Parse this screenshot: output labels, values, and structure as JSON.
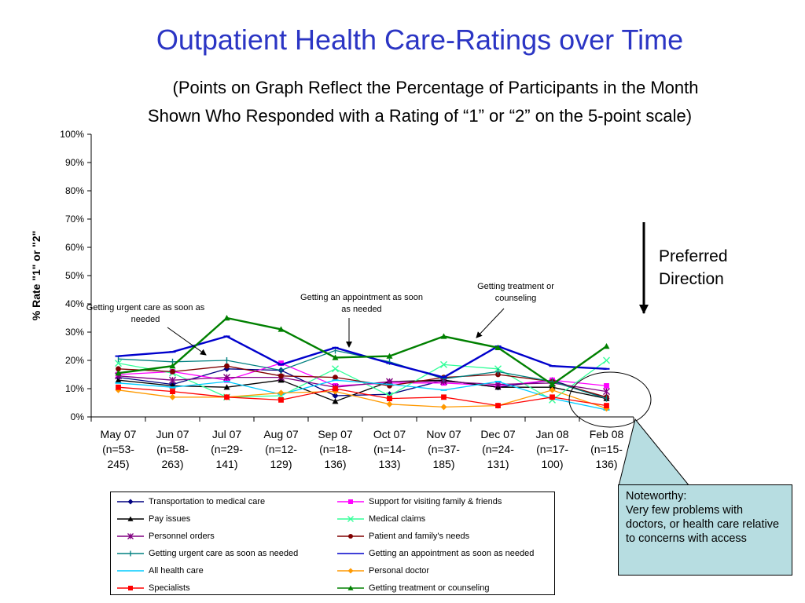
{
  "title": "Outpatient Health Care-Ratings over Time",
  "subtitle": {
    "line1": "(Points on Graph Reflect the Percentage of Participants in the Month",
    "line2": "Shown Who Responded with a Rating of “1” or “2” on the 5-point scale)"
  },
  "annotations": {
    "urgent": "Getting urgent care as soon as needed",
    "appointment": "Getting an appointment as soon as needed",
    "treatment": "Getting treatment or counseling",
    "preferred_line1": "Preferred",
    "preferred_line2": "Direction",
    "noteworthy_title": "Noteworthy:",
    "noteworthy_body": "Very few problems with doctors, or health care relative to concerns with access"
  },
  "chart_data": {
    "type": "line",
    "ylabel": "% Rate \"1\" or \"2\"",
    "ylim": [
      0,
      100
    ],
    "yticks": [
      "0%",
      "10%",
      "20%",
      "30%",
      "40%",
      "50%",
      "60%",
      "70%",
      "80%",
      "90%",
      "100%"
    ],
    "categories": [
      [
        "May 07",
        "(n=53-",
        "245)"
      ],
      [
        "Jun 07",
        "(n=58-",
        "263)"
      ],
      [
        "Jul 07",
        "(n=29-",
        "141)"
      ],
      [
        "Aug 07",
        "(n=12-",
        "129)"
      ],
      [
        "Sep 07",
        "(n=18-",
        "136)"
      ],
      [
        "Oct 07",
        "(n=14-",
        "133)"
      ],
      [
        "Nov 07",
        "(n=37-",
        "185)"
      ],
      [
        "Dec 07",
        "(n=24-",
        "131)"
      ],
      [
        "Jan 08",
        "(n=17-",
        "100)"
      ],
      [
        "Feb 08",
        "(n=15-",
        "136)"
      ]
    ],
    "series": [
      {
        "name": "Transportation to medical care",
        "color": "#000080",
        "marker": "diamond",
        "values": [
          14,
          11.5,
          17,
          16.5,
          7.5,
          8,
          13,
          10.5,
          13,
          6.5
        ]
      },
      {
        "name": "Support for visiting family & friends",
        "color": "#ff00ff",
        "marker": "square",
        "values": [
          15,
          16,
          13,
          19,
          11,
          12,
          12,
          11,
          13,
          11
        ]
      },
      {
        "name": "Pay issues",
        "color": "#000000",
        "marker": "triangle",
        "values": [
          13,
          11,
          10.5,
          13,
          5.5,
          12.5,
          13,
          10.5,
          10.5,
          6.5
        ]
      },
      {
        "name": "Medical claims",
        "color": "#33ff99",
        "marker": "x",
        "values": [
          19,
          15.5,
          7,
          7.5,
          17,
          7.5,
          18.5,
          17,
          6,
          20
        ]
      },
      {
        "name": "Personnel orders",
        "color": "#800080",
        "marker": "star",
        "values": [
          14.5,
          13,
          14,
          14,
          10.5,
          12.5,
          12.5,
          11.5,
          12,
          9
        ]
      },
      {
        "name": "Patient and family's needs",
        "color": "#800000",
        "marker": "circle",
        "values": [
          17,
          16,
          18,
          14.5,
          14,
          11,
          14,
          15,
          12.5,
          7
        ]
      },
      {
        "name": "Getting urgent care as soon as needed",
        "color": "#008080",
        "marker": "plus",
        "values": [
          20.5,
          19.5,
          20,
          16.5,
          23.5,
          19.5,
          13.5,
          16,
          12.5,
          6.5
        ]
      },
      {
        "name": "Getting an appointment as soon as needed",
        "color": "#0000cc",
        "marker": "dash",
        "values": [
          21.5,
          23,
          28.5,
          18.5,
          24.5,
          19,
          14,
          25,
          18,
          17
        ]
      },
      {
        "name": "All health care",
        "color": "#00ccff",
        "marker": "dash",
        "values": [
          12,
          10.5,
          12.5,
          8,
          13,
          11.5,
          9.5,
          12.5,
          6.5,
          2.5
        ]
      },
      {
        "name": "Personal doctor",
        "color": "#ff9900",
        "marker": "diamond",
        "values": [
          9.5,
          7,
          7,
          8.5,
          9,
          4.5,
          3.5,
          4,
          9.5,
          3
        ]
      },
      {
        "name": "Specialists",
        "color": "#ff0000",
        "marker": "square",
        "values": [
          10.5,
          9,
          7,
          6,
          10,
          6.5,
          7,
          4,
          7,
          4
        ]
      },
      {
        "name": "Getting treatment or counseling",
        "color": "#008000",
        "marker": "triangle",
        "values": [
          15.5,
          18,
          35,
          31,
          21,
          21.5,
          28.5,
          24.5,
          11.5,
          25
        ]
      }
    ]
  }
}
